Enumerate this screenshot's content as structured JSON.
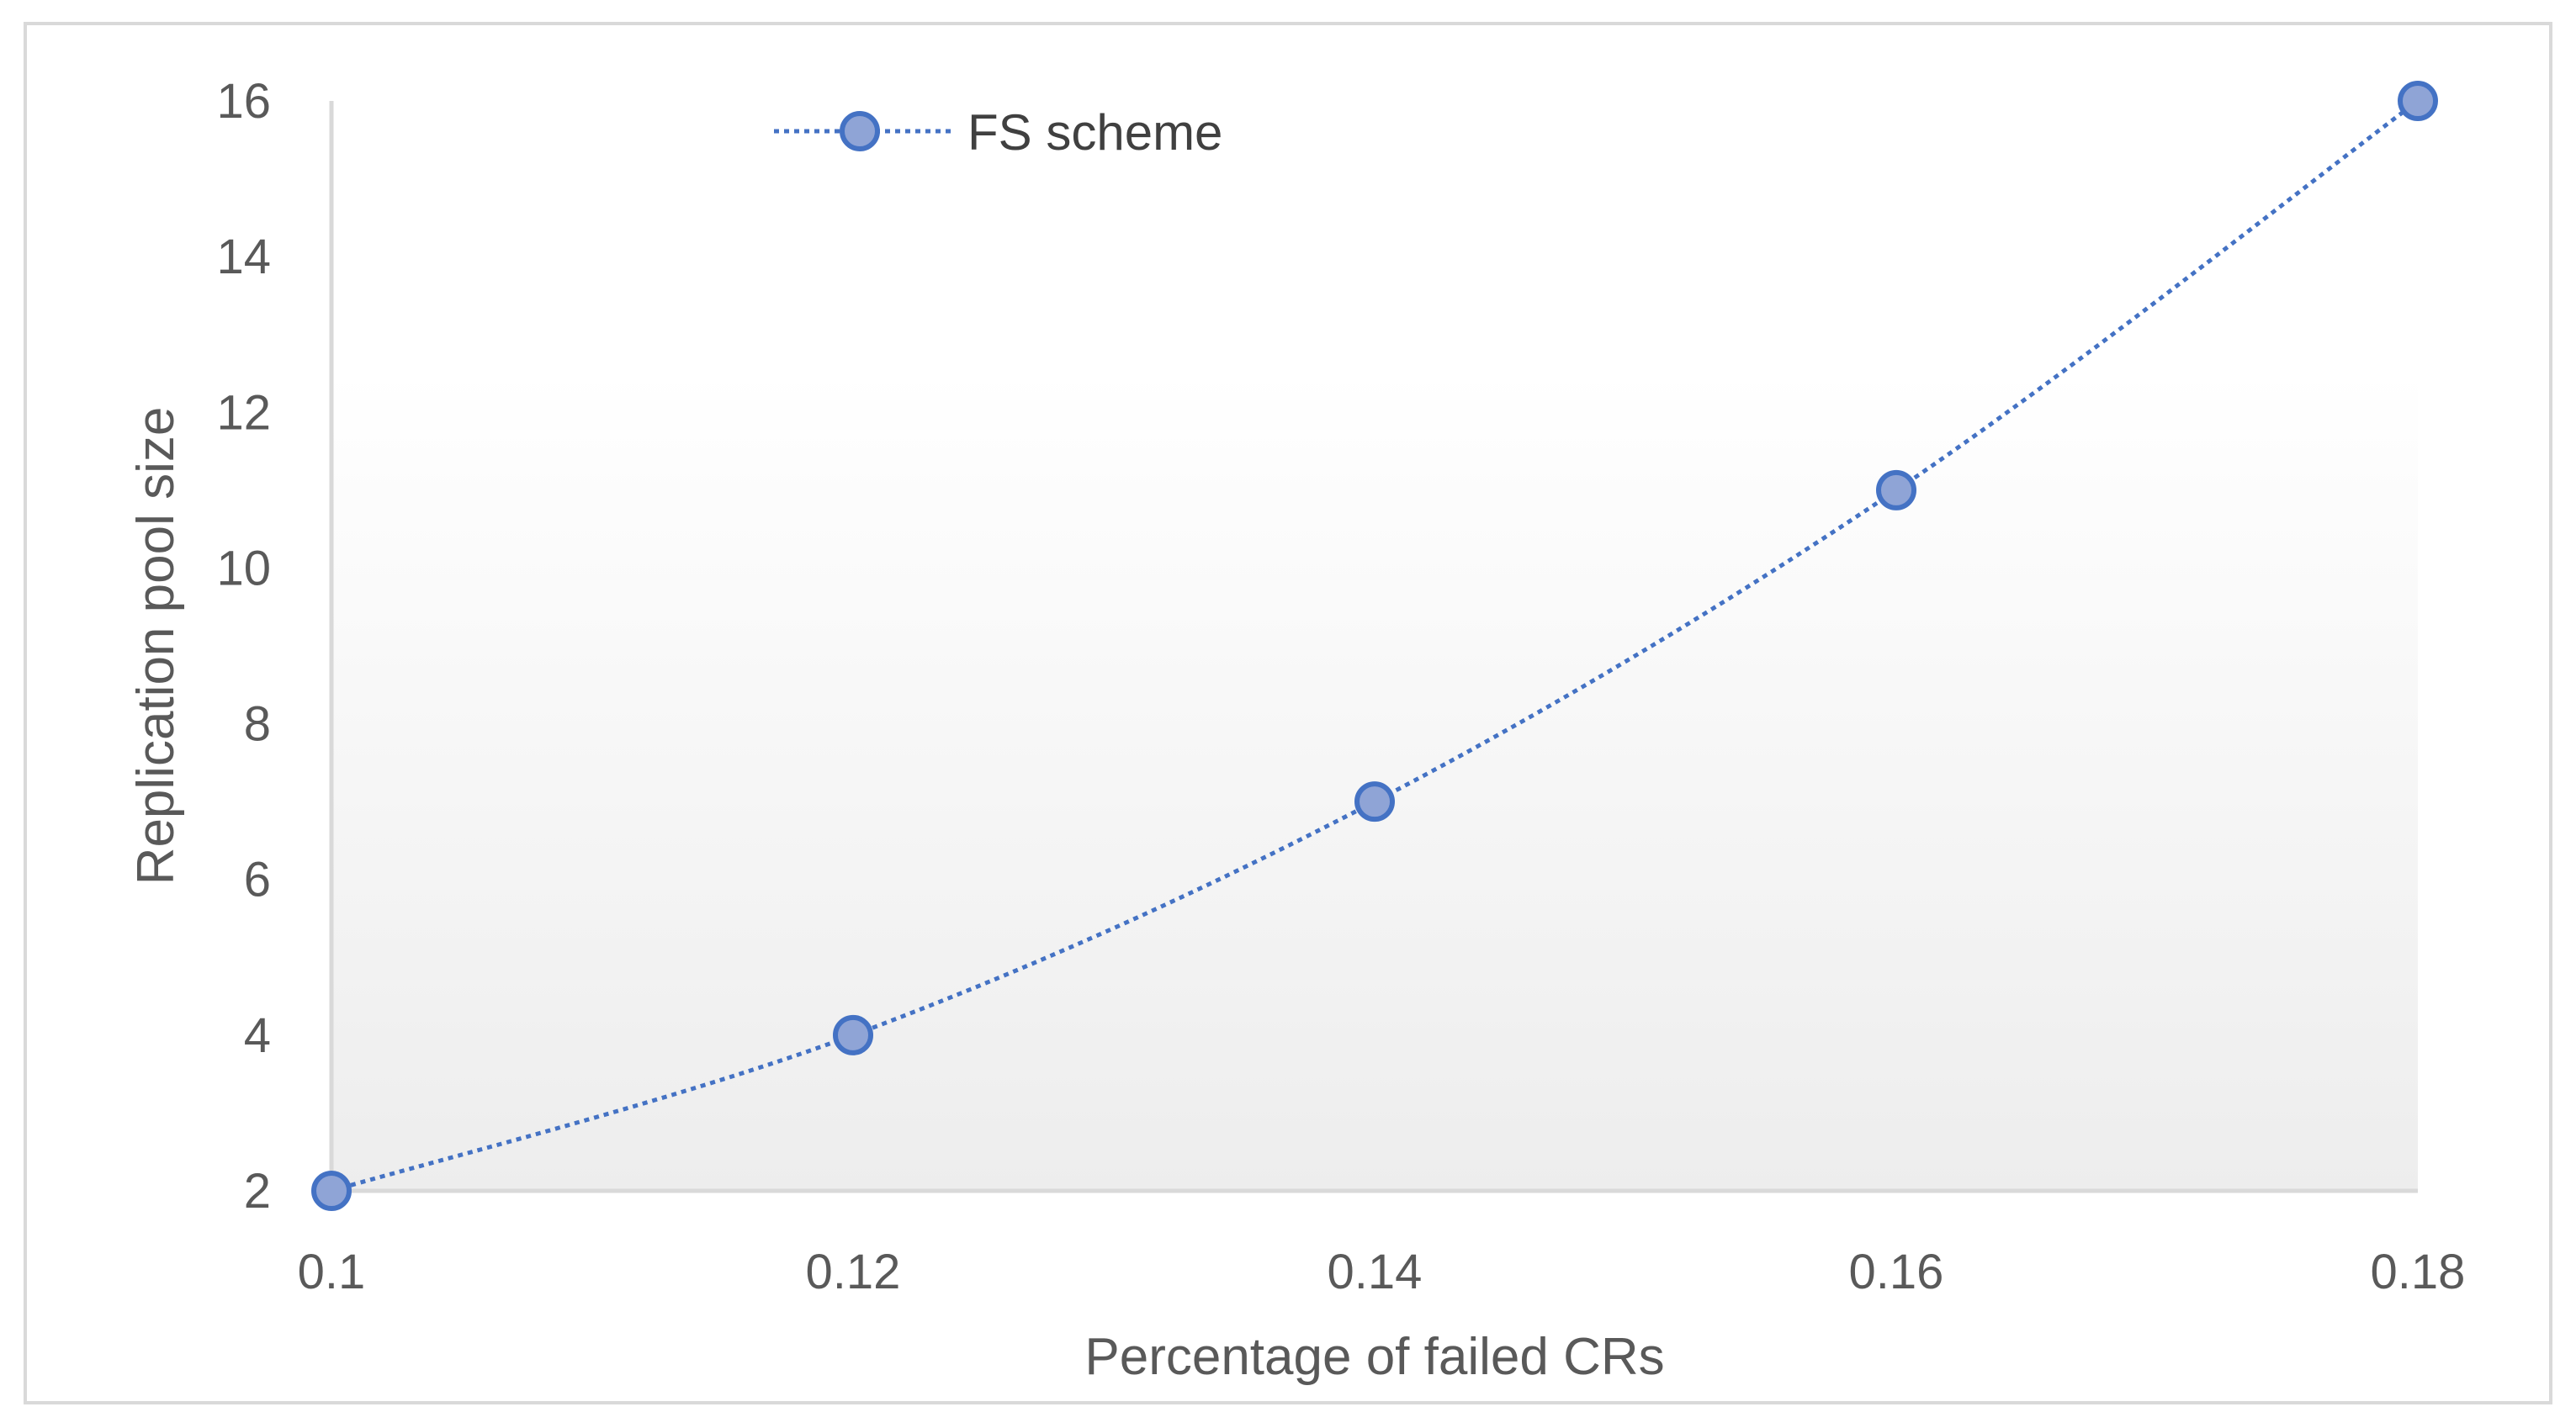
{
  "chart_data": {
    "type": "line",
    "x": [
      0.1,
      0.12,
      0.14,
      0.16,
      0.18
    ],
    "series": [
      {
        "name": "FS scheme",
        "values": [
          2,
          4,
          7,
          11,
          16
        ]
      }
    ],
    "x_ticks": [
      "0.1",
      "0.12",
      "0.14",
      "0.16",
      "0.18"
    ],
    "y_ticks": [
      "2",
      "4",
      "6",
      "8",
      "10",
      "12",
      "14",
      "16"
    ],
    "xlabel": "Percentage of failed CRs",
    "ylabel": "Replication pool size",
    "xlim": [
      0.1,
      0.18
    ],
    "ylim": [
      2,
      16
    ],
    "grid": false,
    "legend_position": "top-left",
    "line_style": "dotted",
    "marker": "circle",
    "colors": {
      "series_line": "#4472C4",
      "marker_fill": "#8FA4D6",
      "marker_edge": "#4472C4",
      "axis": "#D9D9D9",
      "frame": "#D9D9D9",
      "text": "#595959"
    }
  }
}
